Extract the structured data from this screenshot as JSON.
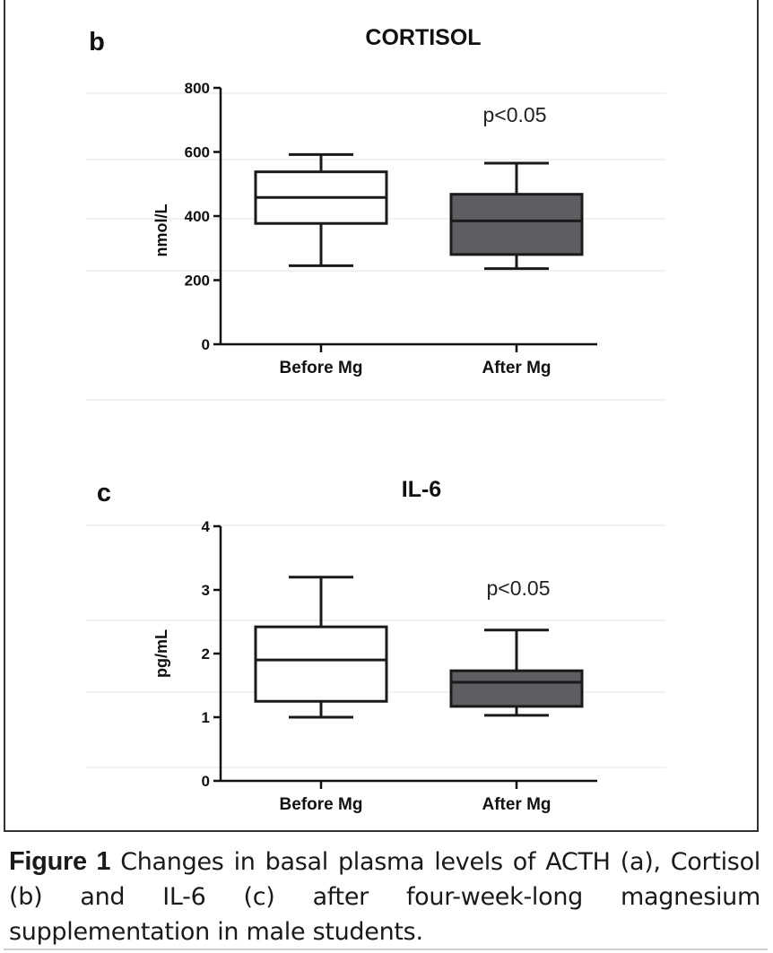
{
  "figure": {
    "caption_label": "Figure 1",
    "caption_text": " Changes in basal plasma levels of ACTH (a), Cortisol (b) and IL-6 (c) after four-week-long magnesium supplementation in male students."
  },
  "chart_data": [
    {
      "type": "box",
      "panel_letter": "b",
      "title": "CORTISOL",
      "ylabel": "nmol/L",
      "xlabel": "",
      "ylim": [
        0,
        800
      ],
      "yticks": [
        0,
        200,
        400,
        600,
        800
      ],
      "categories": [
        "Before Mg",
        "After Mg"
      ],
      "annotation": "p<0.05",
      "colors": {
        "before": "#ffffff",
        "after": "#5e5e62",
        "stroke": "#1a1a1a"
      },
      "boxes": [
        {
          "category": "Before Mg",
          "min": 245,
          "q1": 377,
          "median": 458,
          "q3": 538,
          "max": 592
        },
        {
          "category": "After Mg",
          "min": 236,
          "q1": 280,
          "median": 385,
          "q3": 468,
          "max": 565
        }
      ]
    },
    {
      "type": "box",
      "panel_letter": "c",
      "title": "IL-6",
      "ylabel": "pg/mL",
      "xlabel": "",
      "ylim": [
        0,
        4
      ],
      "yticks": [
        0,
        1,
        2,
        3,
        4
      ],
      "categories": [
        "Before Mg",
        "After Mg"
      ],
      "annotation": "p<0.05",
      "colors": {
        "before": "#ffffff",
        "after": "#5e5e62",
        "stroke": "#1a1a1a"
      },
      "boxes": [
        {
          "category": "Before Mg",
          "min": 1.0,
          "q1": 1.25,
          "median": 1.9,
          "q3": 2.42,
          "max": 3.2
        },
        {
          "category": "After Mg",
          "min": 1.03,
          "q1": 1.17,
          "median": 1.55,
          "q3": 1.73,
          "max": 2.37
        }
      ]
    }
  ]
}
